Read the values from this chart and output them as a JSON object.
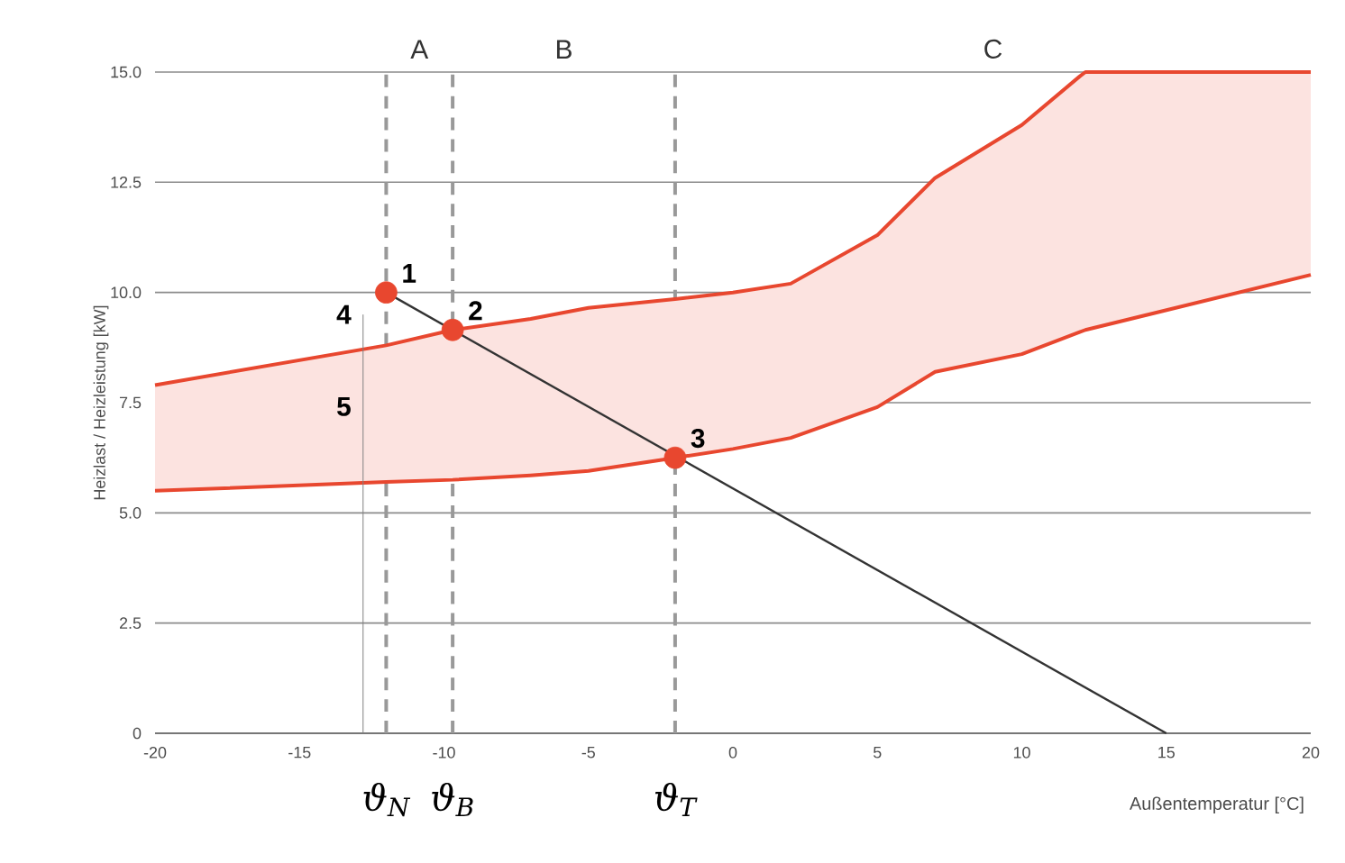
{
  "chart_data": {
    "type": "line",
    "xlabel": "Außentemperatur [°C]",
    "ylabel": "Heizlast / Heizleistung [kW]",
    "xlim": [
      -20,
      20
    ],
    "xticks": [
      -20,
      -15,
      -10,
      -5,
      0,
      5,
      10,
      15,
      20
    ],
    "ylim": [
      0,
      15
    ],
    "yticks": [
      {
        "value": 0,
        "label": "0"
      },
      {
        "value": 2.5,
        "label": "2.5"
      },
      {
        "value": 5,
        "label": "5.0"
      },
      {
        "value": 7.5,
        "label": "7.5"
      },
      {
        "value": 10,
        "label": "10.0"
      },
      {
        "value": 12.5,
        "label": "12.5"
      },
      {
        "value": 15,
        "label": "15.0"
      }
    ],
    "grid": "y",
    "series": [
      {
        "color": "#e8472f",
        "x": [
          -20,
          -12,
          -9.7,
          -7,
          -5,
          -2,
          0,
          2,
          5,
          7,
          10,
          12,
          12.2,
          20
        ],
        "values": [
          7.9,
          8.8,
          9.15,
          9.4,
          9.65,
          9.85,
          10.0,
          10.2,
          11.3,
          12.6,
          13.8,
          14.9,
          15,
          15
        ],
        "lower": [
          5.5,
          5.7,
          5.75,
          5.85,
          5.95,
          6.25,
          6.45,
          6.7,
          7.4,
          8.2,
          8.6,
          9.1,
          9.15,
          10.4
        ],
        "upper": [
          7.9,
          8.8,
          9.15,
          9.4,
          9.65,
          9.85,
          10.0,
          10.2,
          11.3,
          12.6,
          13.8,
          14.9,
          15,
          15
        ]
      },
      {
        "color": "#e8472f",
        "x": [
          -20,
          -12,
          -9.7,
          -7,
          -5,
          -2,
          0,
          2,
          5,
          7,
          10,
          12,
          12.2,
          20
        ],
        "values": [
          5.5,
          5.7,
          5.75,
          5.85,
          5.95,
          6.25,
          6.45,
          6.7,
          7.4,
          8.2,
          8.6,
          9.1,
          9.15,
          10.4
        ]
      },
      {
        "color": "#333333",
        "x": [
          -12,
          15
        ],
        "values": [
          10,
          0
        ]
      },
      {
        "type": "scatter",
        "color": "#e8472f",
        "marker": "circle",
        "x": [
          -12,
          -9.7,
          -2
        ],
        "values": [
          10,
          9.15,
          6.25
        ]
      }
    ],
    "ref_lines": [
      {
        "axis": "x",
        "value": -12,
        "label": "ϑ$_{N}$",
        "line_style": "dashed",
        "color": "#999999"
      },
      {
        "axis": "x",
        "value": -9.7,
        "label": "ϑ$_{B}$",
        "line_style": "dashed",
        "color": "#999999"
      },
      {
        "axis": "x",
        "value": -2,
        "label": "ϑ$_{T}$",
        "line_style": "dashed",
        "color": "#999999"
      }
    ],
    "annotations": [
      "A",
      "B",
      "C",
      {
        "text": "1",
        "x": -12,
        "y": 10
      },
      {
        "text": "2",
        "x": -9.7,
        "y": 9.15
      },
      {
        "text": "3",
        "x": -2,
        "y": 6.25
      },
      "4",
      "5"
    ]
  }
}
